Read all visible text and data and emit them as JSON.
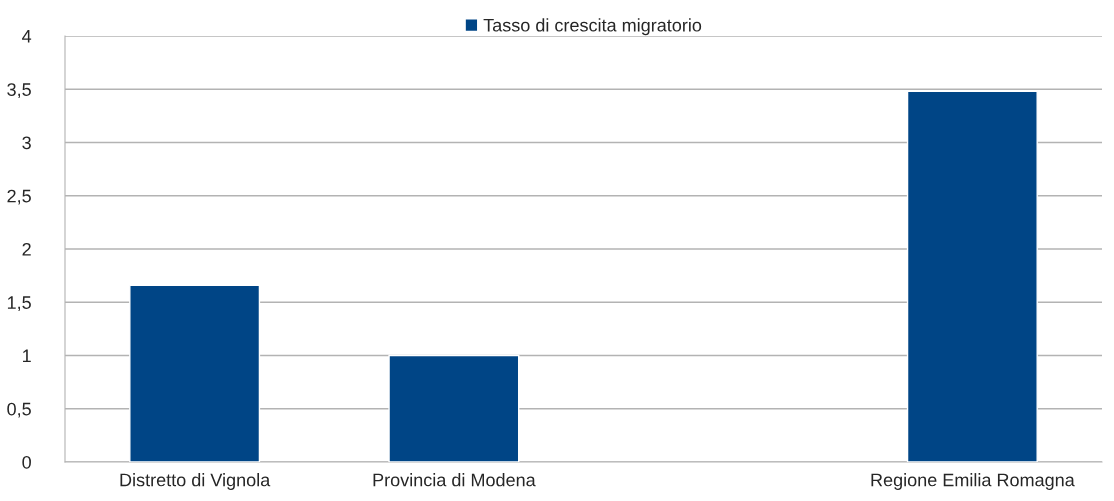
{
  "chart_data": {
    "type": "bar",
    "categories": [
      "Distretto di Vignola",
      "Provincia di Modena",
      null,
      "Regione Emilia Romagna"
    ],
    "series": [
      {
        "name": "Tasso di crescita migratorio",
        "color": "#004586",
        "values": [
          1.66,
          1.0,
          null,
          3.48
        ]
      }
    ],
    "ylim": [
      0,
      4
    ],
    "yticks": [
      0,
      {
        "value": 0.5,
        "label": "0,5"
      },
      1,
      {
        "value": 1.5,
        "label": "1,5"
      },
      2,
      {
        "value": 2.5,
        "label": "2,5"
      },
      3,
      {
        "value": 3.5,
        "label": "3,5"
      },
      4
    ],
    "grid": "y",
    "legend": "top"
  }
}
